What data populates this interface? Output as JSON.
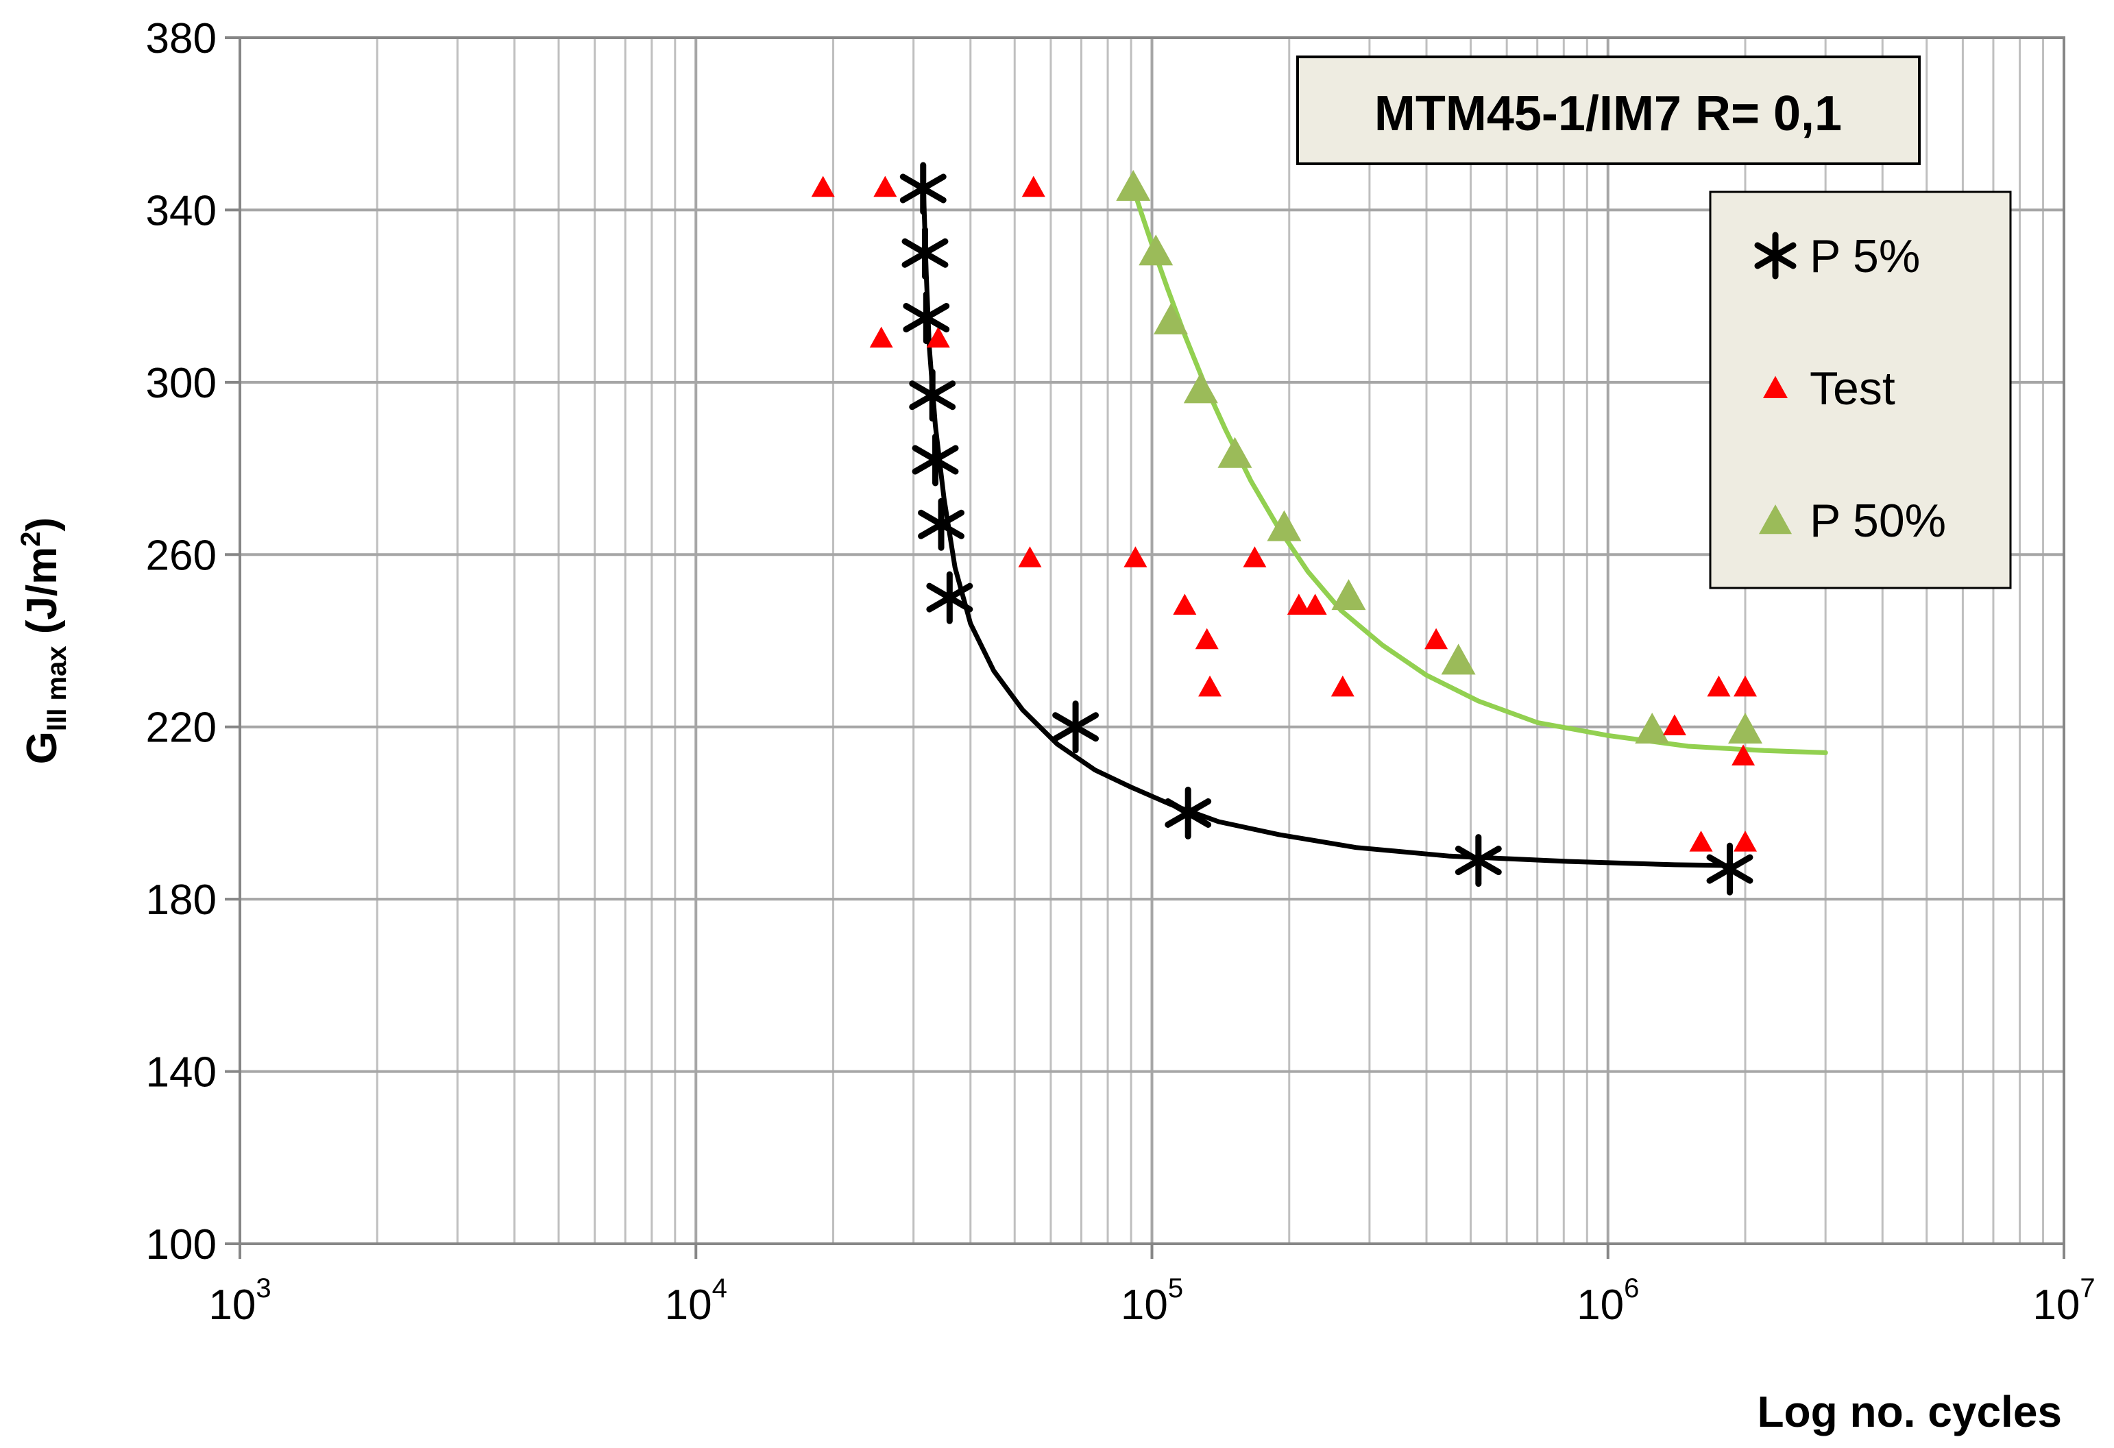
{
  "chart_data": {
    "type": "scatter",
    "title": "MTM45-1/IM7 R= 0,1",
    "xlabel": "Log no. cycles",
    "ylabel": {
      "G": "G",
      "sub": "III max",
      "unit_pre": " (J/m",
      "unit_sup": "2",
      "unit_post": ")"
    },
    "xscale": "log",
    "xlim": [
      1000,
      10000000
    ],
    "ylim": [
      100,
      380
    ],
    "x_ticks": [
      {
        "base": "10",
        "exp": "3",
        "value": 1000
      },
      {
        "base": "10",
        "exp": "4",
        "value": 10000
      },
      {
        "base": "10",
        "exp": "5",
        "value": 100000
      },
      {
        "base": "10",
        "exp": "6",
        "value": 1000000
      },
      {
        "base": "10",
        "exp": "7",
        "value": 10000000
      }
    ],
    "y_ticks": [
      100,
      140,
      180,
      220,
      260,
      300,
      340,
      380
    ],
    "grid": true,
    "legend": {
      "position": "right",
      "entries": [
        "P 5%",
        "Test",
        "P 50%"
      ]
    },
    "series": [
      {
        "name": "P 5%",
        "marker": "asterisk",
        "color": "#000000",
        "points": [
          [
            31500,
            345
          ],
          [
            31800,
            330
          ],
          [
            32000,
            315
          ],
          [
            33000,
            297
          ],
          [
            33500,
            282
          ],
          [
            34500,
            267
          ],
          [
            36000,
            250
          ],
          [
            68000,
            220
          ],
          [
            120000,
            200
          ],
          [
            520000,
            189
          ],
          [
            1850000,
            187
          ]
        ]
      },
      {
        "name": "Test",
        "marker": "triangle",
        "color": "#ff0000",
        "points": [
          [
            19000,
            345
          ],
          [
            26000,
            345
          ],
          [
            55000,
            345
          ],
          [
            25500,
            310
          ],
          [
            34000,
            310
          ],
          [
            54000,
            259
          ],
          [
            92000,
            259
          ],
          [
            118000,
            248
          ],
          [
            132000,
            240
          ],
          [
            134000,
            229
          ],
          [
            168000,
            259
          ],
          [
            210000,
            248
          ],
          [
            228000,
            248
          ],
          [
            262000,
            229
          ],
          [
            420000,
            240
          ],
          [
            1400000,
            220
          ],
          [
            1600000,
            193
          ],
          [
            1750000,
            229
          ],
          [
            2000000,
            229
          ],
          [
            1980000,
            213
          ],
          [
            2000000,
            193
          ]
        ]
      },
      {
        "name": "P 50%",
        "marker": "triangle",
        "color": "#9bbb59",
        "points": [
          [
            91000,
            345
          ],
          [
            102000,
            330
          ],
          [
            110000,
            314
          ],
          [
            128000,
            298
          ],
          [
            152000,
            283
          ],
          [
            195000,
            266
          ],
          [
            270000,
            250
          ],
          [
            470000,
            235
          ],
          [
            1250000,
            219
          ],
          [
            2000000,
            219
          ]
        ]
      }
    ],
    "trendlines": [
      {
        "name": "P 5% fit",
        "color": "#000000",
        "points": [
          [
            31500,
            347
          ],
          [
            32000,
            325
          ],
          [
            32500,
            308
          ],
          [
            33500,
            290
          ],
          [
            35000,
            273
          ],
          [
            37000,
            257
          ],
          [
            40000,
            244
          ],
          [
            45000,
            233
          ],
          [
            52000,
            224
          ],
          [
            62000,
            216
          ],
          [
            75000,
            210
          ],
          [
            90000,
            206
          ],
          [
            110000,
            202
          ],
          [
            140000,
            198
          ],
          [
            190000,
            195
          ],
          [
            280000,
            192
          ],
          [
            450000,
            190
          ],
          [
            800000,
            188.8
          ],
          [
            1400000,
            188
          ],
          [
            1900000,
            187.8
          ]
        ]
      },
      {
        "name": "P 50% fit",
        "color": "#92d050",
        "points": [
          [
            91000,
            345
          ],
          [
            95000,
            339
          ],
          [
            100000,
            332
          ],
          [
            108000,
            322
          ],
          [
            118000,
            311
          ],
          [
            130000,
            300
          ],
          [
            145000,
            289
          ],
          [
            165000,
            277
          ],
          [
            190000,
            266
          ],
          [
            220000,
            256
          ],
          [
            260000,
            247
          ],
          [
            320000,
            239
          ],
          [
            400000,
            232
          ],
          [
            520000,
            226
          ],
          [
            700000,
            221
          ],
          [
            1000000,
            218
          ],
          [
            1500000,
            215.5
          ],
          [
            2200000,
            214.5
          ],
          [
            3000000,
            214
          ]
        ]
      }
    ]
  }
}
